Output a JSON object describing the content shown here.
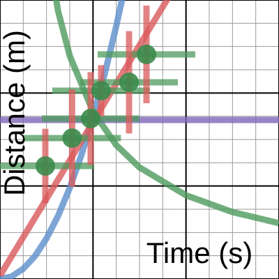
{
  "chart_data": {
    "type": "line",
    "xlabel": "Time (s)",
    "ylabel": "Distance (m)",
    "xlim": [
      0,
      12
    ],
    "ylim": [
      0,
      12
    ],
    "xticks": [
      0,
      1,
      2,
      3,
      4,
      5,
      6,
      7,
      8,
      9,
      10,
      11,
      12
    ],
    "yticks": [
      0,
      1,
      2,
      3,
      4,
      5,
      6,
      7,
      8,
      9,
      10,
      11,
      12
    ],
    "major_xticks": [
      0,
      4,
      8,
      12
    ],
    "major_yticks": [
      0,
      4,
      8,
      12
    ],
    "grid": true,
    "series": [
      {
        "type": "line",
        "color": "#5b8fcc",
        "x": [
          0,
          0.5,
          1,
          1.5,
          2,
          2.5,
          3,
          3.5,
          4,
          4.5,
          5,
          5.5
        ],
        "values": [
          0,
          0.11,
          0.44,
          0.98,
          1.74,
          2.72,
          3.92,
          5.33,
          6.96,
          8.81,
          10.88,
          13.16
        ]
      },
      {
        "type": "line",
        "color": "#d9595b",
        "x": [
          0,
          7.3
        ],
        "values": [
          0.15,
          12.2
        ]
      },
      {
        "type": "line",
        "color": "#4e9a5c",
        "x": [
          2,
          2.5,
          3,
          4,
          5,
          6,
          8,
          10,
          12
        ],
        "values": [
          14.4,
          11.52,
          9.6,
          7.2,
          5.76,
          4.8,
          3.6,
          2.88,
          2.4
        ]
      },
      {
        "type": "line",
        "color": "#7d67b8",
        "x": [
          0,
          12
        ],
        "values": [
          6.84,
          6.84
        ]
      },
      {
        "type": "errorbar",
        "color": "#3b8a4b",
        "xerr_color": "#4e9a5c",
        "yerr_color": "#d9595b",
        "x": [
          1.95,
          3.1,
          3.9,
          4.35,
          5.55,
          6.3
        ],
        "values": [
          4.86,
          6.06,
          6.9,
          8.1,
          8.46,
          9.66
        ],
        "xerr": [
          2.1,
          2.1,
          2.1,
          2.1,
          2.1,
          2.1
        ],
        "yerr": [
          1.6,
          2.1,
          2.0,
          1.1,
          2.2,
          2.1
        ]
      }
    ]
  }
}
